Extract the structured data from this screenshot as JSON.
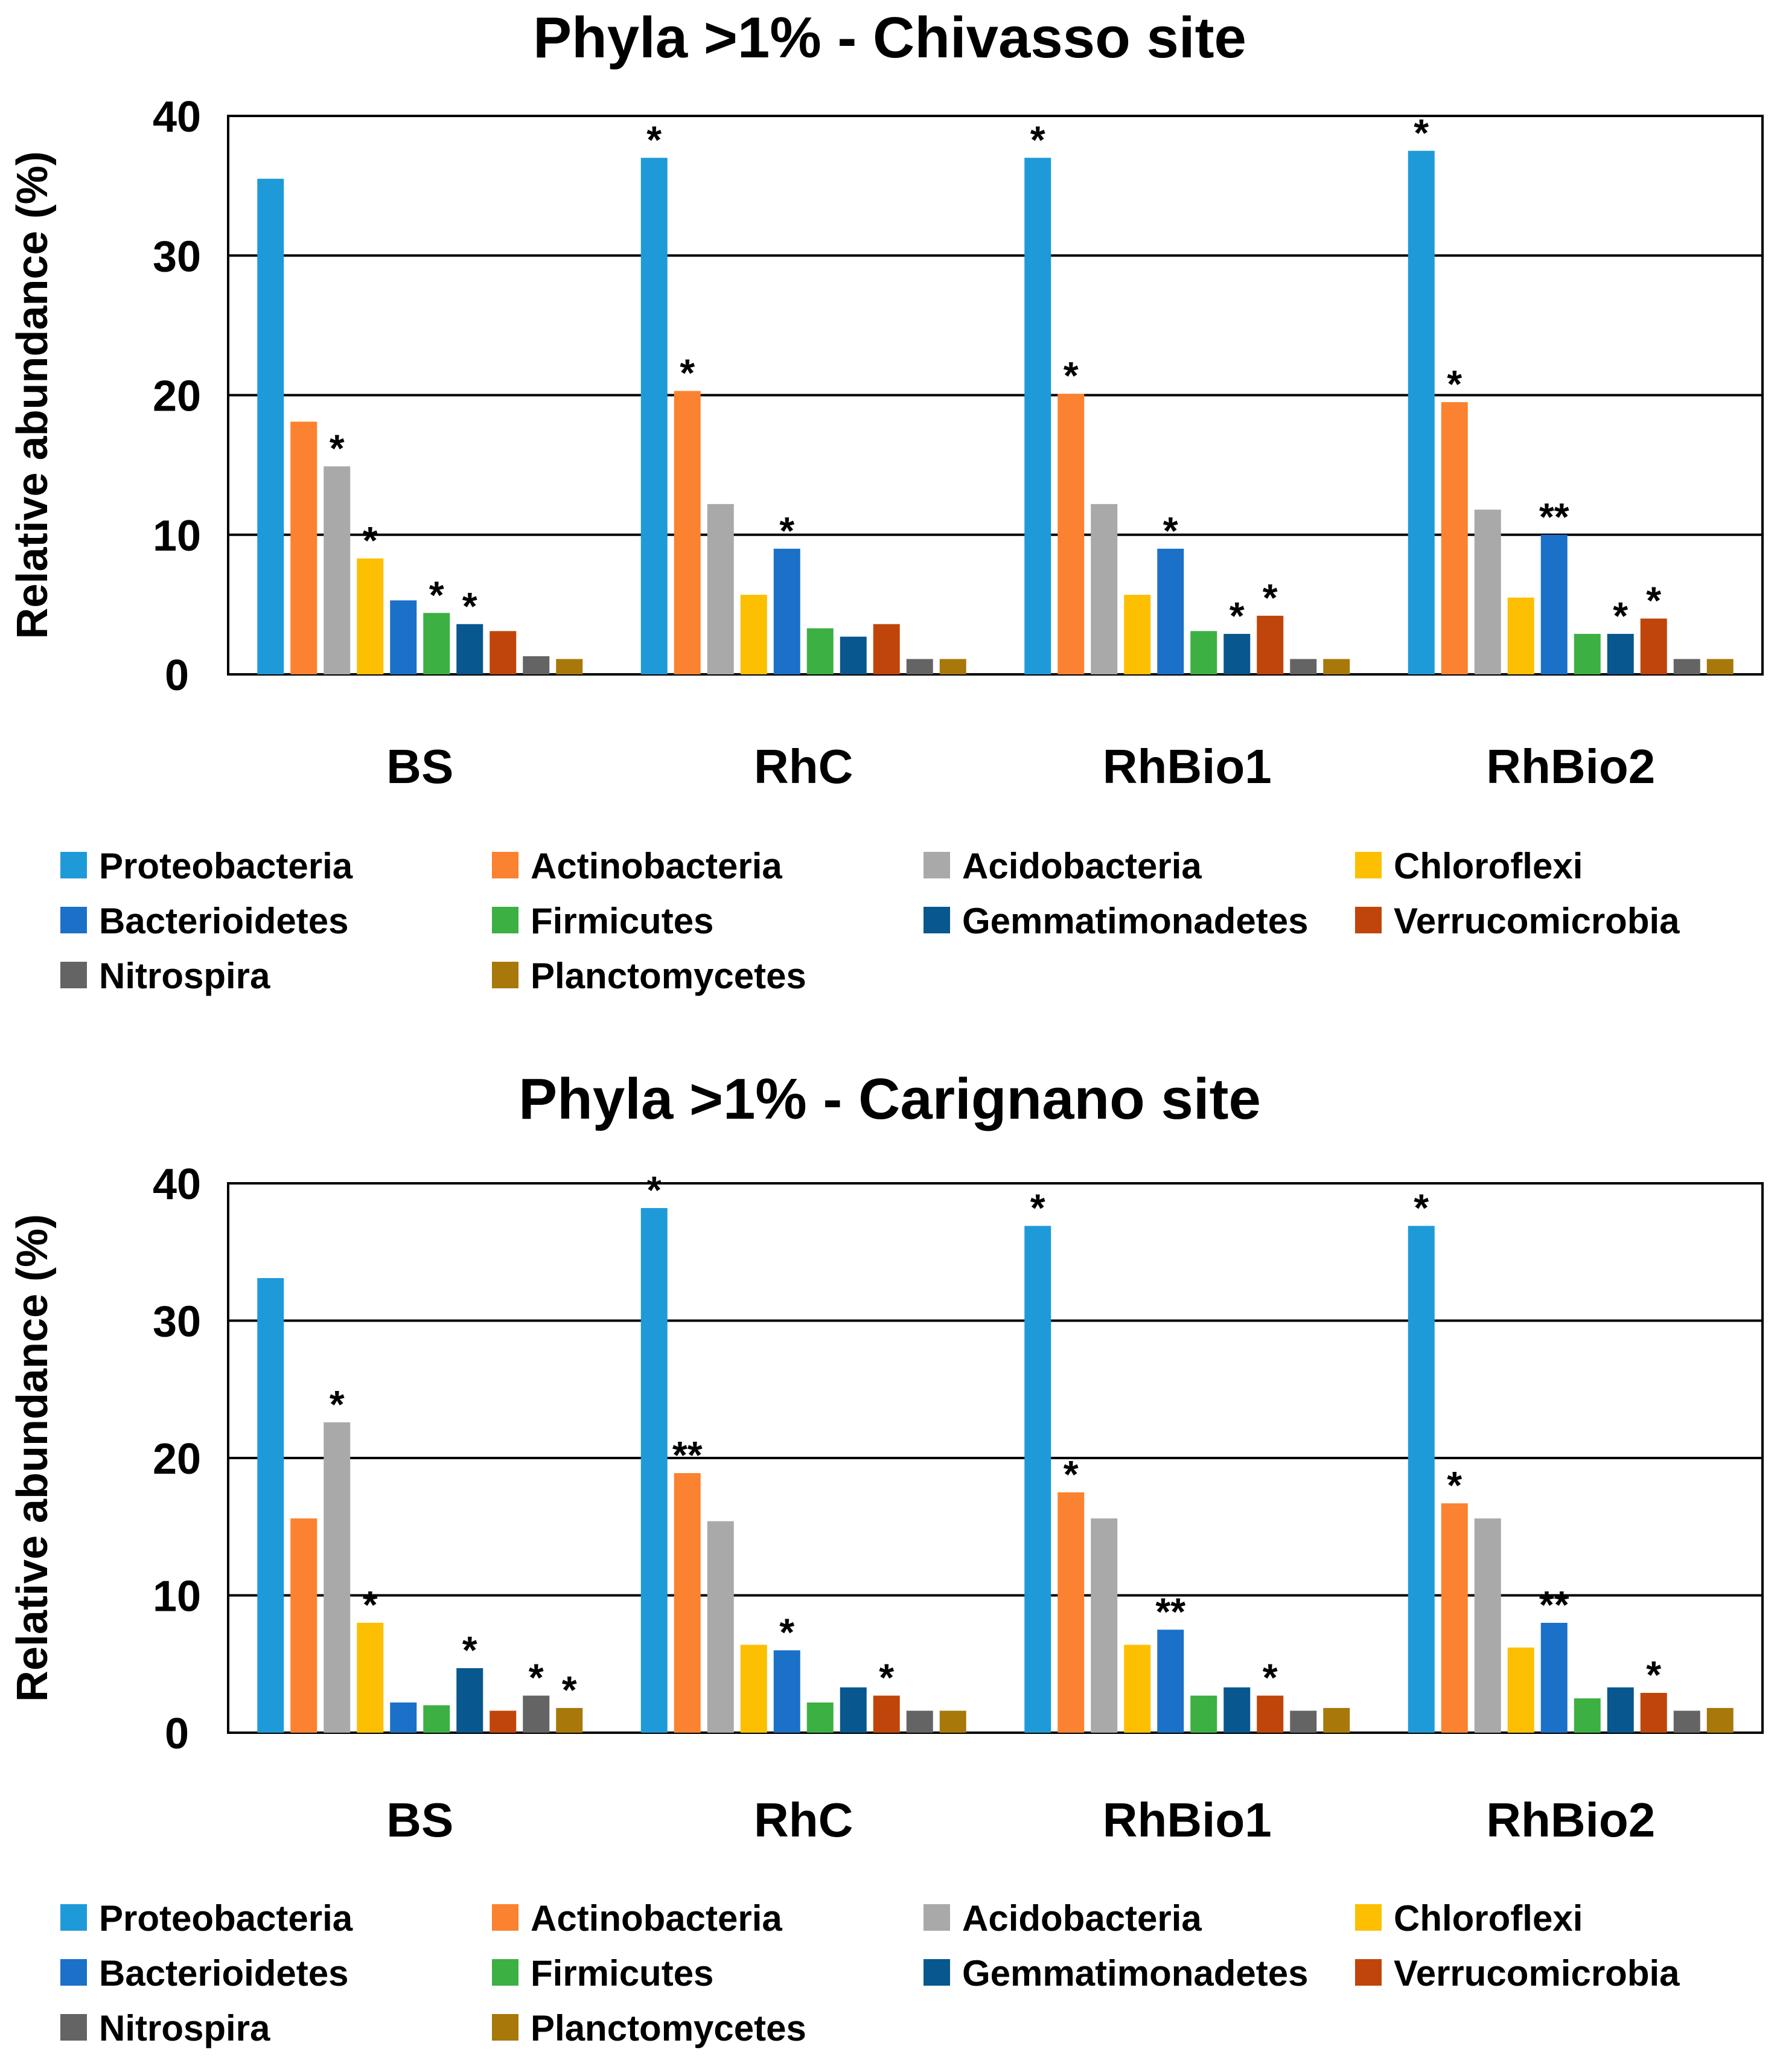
{
  "colors": {
    "Proteobacteria": "#1f9ad8",
    "Actinobacteria": "#fb8230",
    "Acidobacteria": "#a9a9a9",
    "Chloroflexi": "#fcbf02",
    "Bacterioidetes": "#1b70c8",
    "Firmicutes": "#3cb043",
    "Gemmatimonadetes": "#08578f",
    "Verrucomicrobia": "#c0450a",
    "Nitrospira": "#646464",
    "Planctomycetes": "#a8780a"
  },
  "chart_data": [
    {
      "type": "bar",
      "title": "Phyla >1%  - Chivasso site",
      "ylabel": "Relative abundance (%)",
      "xlabel": "",
      "ylim": [
        0,
        40
      ],
      "yticks": [
        "0",
        "10",
        "20",
        "30",
        "40"
      ],
      "grid": true,
      "legend_position": "bottom",
      "categories": [
        "BS",
        "RhC",
        "RhBio1",
        "RhBio2"
      ],
      "series": [
        {
          "name": "Proteobacteria",
          "values": [
            35.5,
            37.0,
            37.0,
            37.5
          ],
          "labels": [
            "",
            "*",
            "*",
            "*"
          ]
        },
        {
          "name": "Actinobacteria",
          "values": [
            18.1,
            20.3,
            20.1,
            19.5
          ],
          "labels": [
            "",
            "*",
            "*",
            "*"
          ]
        },
        {
          "name": "Acidobacteria",
          "values": [
            14.9,
            12.2,
            12.2,
            11.8
          ],
          "labels": [
            "*",
            "",
            "",
            ""
          ]
        },
        {
          "name": "Chloroflexi",
          "values": [
            8.3,
            5.7,
            5.7,
            5.5
          ],
          "labels": [
            "*",
            "",
            "",
            ""
          ]
        },
        {
          "name": "Bacterioidetes",
          "values": [
            5.3,
            9.0,
            9.0,
            10.0
          ],
          "labels": [
            "",
            "*",
            "*",
            "**"
          ]
        },
        {
          "name": "Firmicutes",
          "values": [
            4.4,
            3.3,
            3.1,
            2.9
          ],
          "labels": [
            "*",
            "",
            "",
            ""
          ]
        },
        {
          "name": "Gemmatimonadetes",
          "values": [
            3.6,
            2.7,
            2.9,
            2.9
          ],
          "labels": [
            "*",
            "",
            "*",
            "*"
          ]
        },
        {
          "name": "Verrucomicrobia",
          "values": [
            3.1,
            3.6,
            4.2,
            4.0
          ],
          "labels": [
            "",
            "",
            "*",
            "*"
          ]
        },
        {
          "name": "Nitrospira",
          "values": [
            1.3,
            1.1,
            1.1,
            1.1
          ],
          "labels": [
            "",
            "",
            "",
            ""
          ]
        },
        {
          "name": "Planctomycetes",
          "values": [
            1.1,
            1.1,
            1.1,
            1.1
          ],
          "labels": [
            "",
            "",
            "",
            ""
          ]
        }
      ]
    },
    {
      "type": "bar",
      "title": "Phyla >1% - Carignano site",
      "ylabel": "Relative abundance (%)",
      "xlabel": "",
      "ylim": [
        0,
        40
      ],
      "yticks": [
        "0",
        "10",
        "20",
        "30",
        "40"
      ],
      "grid": true,
      "legend_position": "bottom",
      "categories": [
        "BS",
        "RhC",
        "RhBio1",
        "RhBio2"
      ],
      "series": [
        {
          "name": "Proteobacteria",
          "values": [
            33.1,
            38.2,
            36.9,
            36.9
          ],
          "labels": [
            "",
            "*",
            "*",
            "*"
          ]
        },
        {
          "name": "Actinobacteria",
          "values": [
            15.6,
            18.9,
            17.5,
            16.7
          ],
          "labels": [
            "",
            "**",
            "*",
            "*"
          ]
        },
        {
          "name": "Acidobacteria",
          "values": [
            22.6,
            15.4,
            15.6,
            15.6
          ],
          "labels": [
            "*",
            "",
            "",
            ""
          ]
        },
        {
          "name": "Chloroflexi",
          "values": [
            8.0,
            6.4,
            6.4,
            6.2
          ],
          "labels": [
            "*",
            "",
            "",
            ""
          ]
        },
        {
          "name": "Bacterioidetes",
          "values": [
            2.2,
            6.0,
            7.5,
            8.0
          ],
          "labels": [
            "",
            "*",
            "**",
            "**"
          ]
        },
        {
          "name": "Firmicutes",
          "values": [
            2.0,
            2.2,
            2.7,
            2.5
          ],
          "labels": [
            "",
            "",
            "",
            ""
          ]
        },
        {
          "name": "Gemmatimonadetes",
          "values": [
            4.7,
            3.3,
            3.3,
            3.3
          ],
          "labels": [
            "*",
            "",
            "",
            ""
          ]
        },
        {
          "name": "Verrucomicrobia",
          "values": [
            1.6,
            2.7,
            2.7,
            2.9
          ],
          "labels": [
            "",
            "*",
            "*",
            "*"
          ]
        },
        {
          "name": "Nitrospira",
          "values": [
            2.7,
            1.6,
            1.6,
            1.6
          ],
          "labels": [
            "*",
            "",
            "",
            ""
          ]
        },
        {
          "name": "Planctomycetes",
          "values": [
            1.8,
            1.6,
            1.8,
            1.8
          ],
          "labels": [
            "*",
            "",
            "",
            ""
          ]
        }
      ]
    }
  ]
}
